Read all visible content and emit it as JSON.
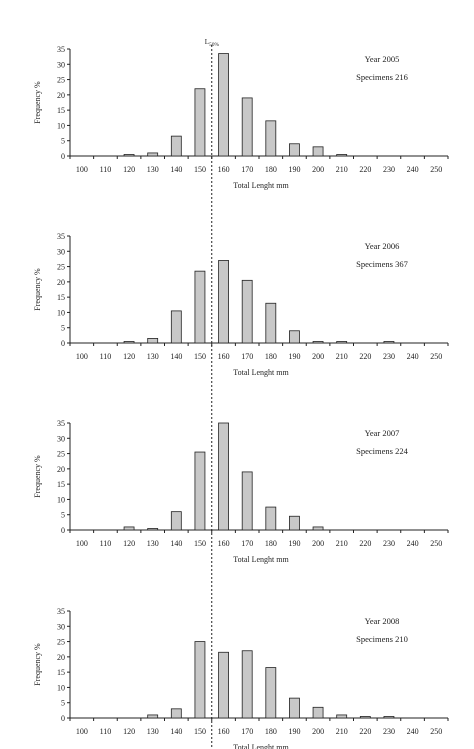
{
  "l50_label": "L50%",
  "l50_value": 155,
  "chart_data": [
    {
      "type": "bar",
      "annotation_year": "Year 2005",
      "annotation_specimens": "Specimens 216",
      "xlabel": "Total Lenght mm",
      "ylabel": "Frequency %",
      "ylim": [
        0,
        35
      ],
      "yticks": [
        0,
        5,
        10,
        15,
        20,
        25,
        30,
        35
      ],
      "categories": [
        "100",
        "110",
        "120",
        "130",
        "140",
        "150",
        "160",
        "170",
        "180",
        "190",
        "200",
        "210",
        "220",
        "230",
        "240",
        "250"
      ],
      "values": [
        0,
        0,
        0.5,
        1,
        6.5,
        22,
        33.5,
        19,
        11.5,
        4,
        3,
        0.5,
        0,
        0,
        0,
        0
      ]
    },
    {
      "type": "bar",
      "annotation_year": "Year 2006",
      "annotation_specimens": "Specimens 367",
      "xlabel": "Total Lenght mm",
      "ylabel": "Frequency %",
      "ylim": [
        0,
        35
      ],
      "yticks": [
        0,
        5,
        10,
        15,
        20,
        25,
        30,
        35
      ],
      "categories": [
        "100",
        "110",
        "120",
        "130",
        "140",
        "150",
        "160",
        "170",
        "180",
        "190",
        "200",
        "210",
        "220",
        "230",
        "240",
        "250"
      ],
      "values": [
        0,
        0,
        0.5,
        1.5,
        10.5,
        23.5,
        27,
        20.5,
        13,
        4,
        0.5,
        0.5,
        0,
        0.5,
        0,
        0
      ]
    },
    {
      "type": "bar",
      "annotation_year": "Year 2007",
      "annotation_specimens": "Specimens 224",
      "xlabel": "Total Lenght mm",
      "ylabel": "Frequency %",
      "ylim": [
        0,
        35
      ],
      "yticks": [
        0,
        5,
        10,
        15,
        20,
        25,
        30,
        35
      ],
      "categories": [
        "100",
        "110",
        "120",
        "130",
        "140",
        "150",
        "160",
        "170",
        "180",
        "190",
        "200",
        "210",
        "220",
        "230",
        "240",
        "250"
      ],
      "values": [
        0,
        0,
        1,
        0.5,
        6,
        25.5,
        35,
        19,
        7.5,
        4.5,
        1,
        0,
        0,
        0,
        0,
        0
      ]
    },
    {
      "type": "bar",
      "annotation_year": "Year 2008",
      "annotation_specimens": "Specimens 210",
      "xlabel": "Total Lenght mm",
      "ylabel": "Frequency %",
      "ylim": [
        0,
        35
      ],
      "yticks": [
        0,
        5,
        10,
        15,
        20,
        25,
        30,
        35
      ],
      "categories": [
        "100",
        "110",
        "120",
        "130",
        "140",
        "150",
        "160",
        "170",
        "180",
        "190",
        "200",
        "210",
        "220",
        "230",
        "240",
        "250"
      ],
      "values": [
        0,
        0,
        0,
        1,
        3,
        25,
        21.5,
        22,
        16.5,
        6.5,
        3.5,
        1,
        0.5,
        0.5,
        0,
        0
      ]
    }
  ]
}
